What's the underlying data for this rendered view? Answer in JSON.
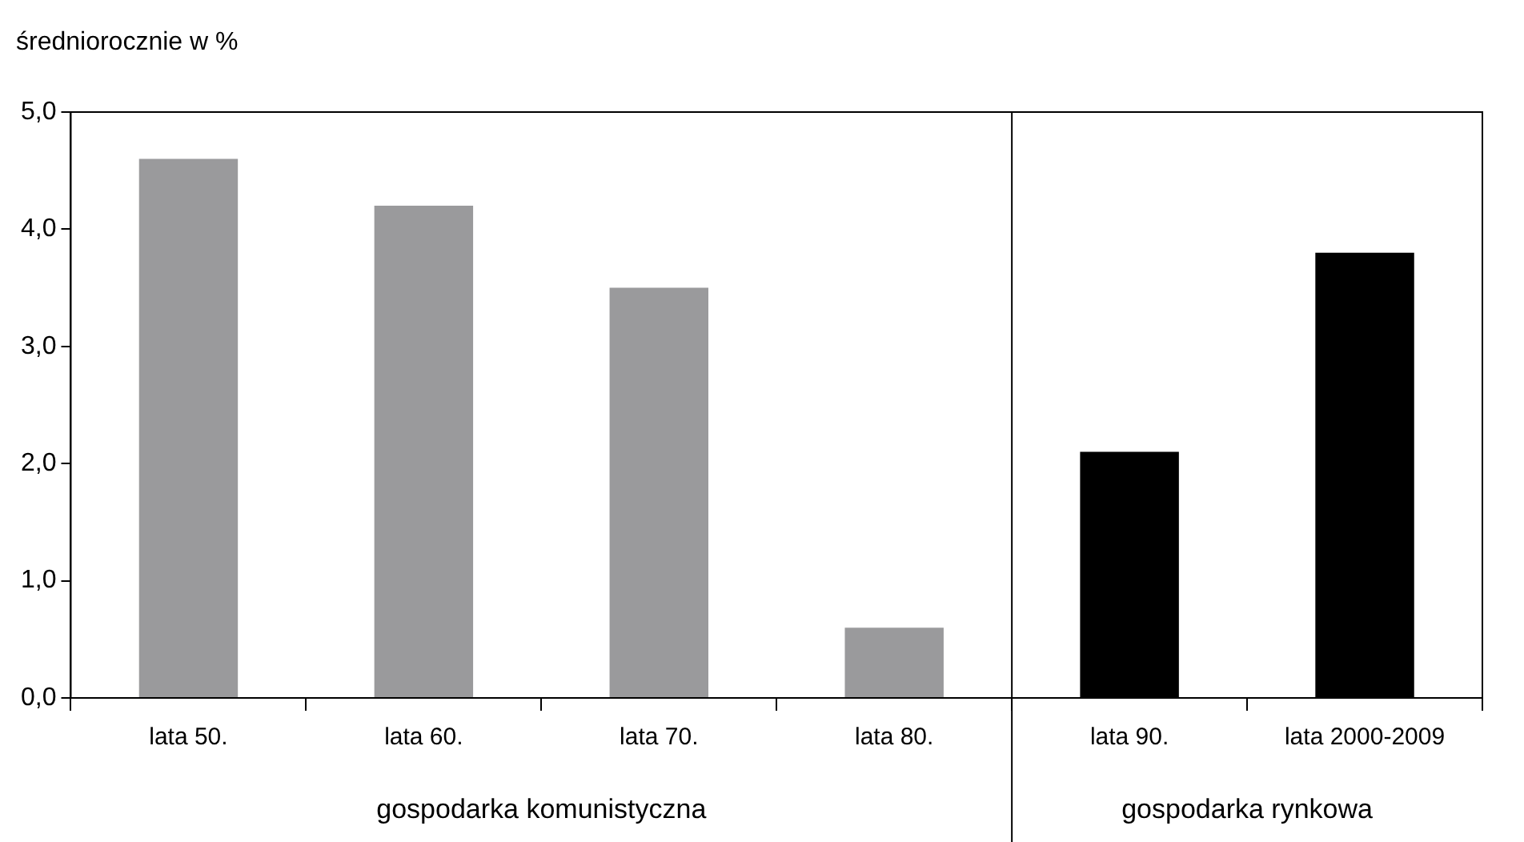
{
  "chart_data": {
    "type": "bar",
    "ylabel": "średniorocznie w %",
    "categories": [
      "lata 50.",
      "lata 60.",
      "lata 70.",
      "lata 80.",
      "lata 90.",
      "lata 2000-2009"
    ],
    "values": [
      4.6,
      4.2,
      3.5,
      0.6,
      2.1,
      3.8
    ],
    "colors": [
      "#9a9a9c",
      "#9a9a9c",
      "#9a9a9c",
      "#9a9a9c",
      "#000000",
      "#000000"
    ],
    "ylim": [
      0,
      5
    ],
    "yticks": [
      {
        "value": 0,
        "label": "0,0"
      },
      {
        "value": 1,
        "label": "1,0"
      },
      {
        "value": 2,
        "label": "2,0"
      },
      {
        "value": 3,
        "label": "3,0"
      },
      {
        "value": 4,
        "label": "4,0"
      },
      {
        "value": 5,
        "label": "5,0"
      }
    ],
    "annotations": [
      "gospodarka komunistyczna",
      "gospodarka rynkowa"
    ],
    "grid": false,
    "legend": false
  }
}
